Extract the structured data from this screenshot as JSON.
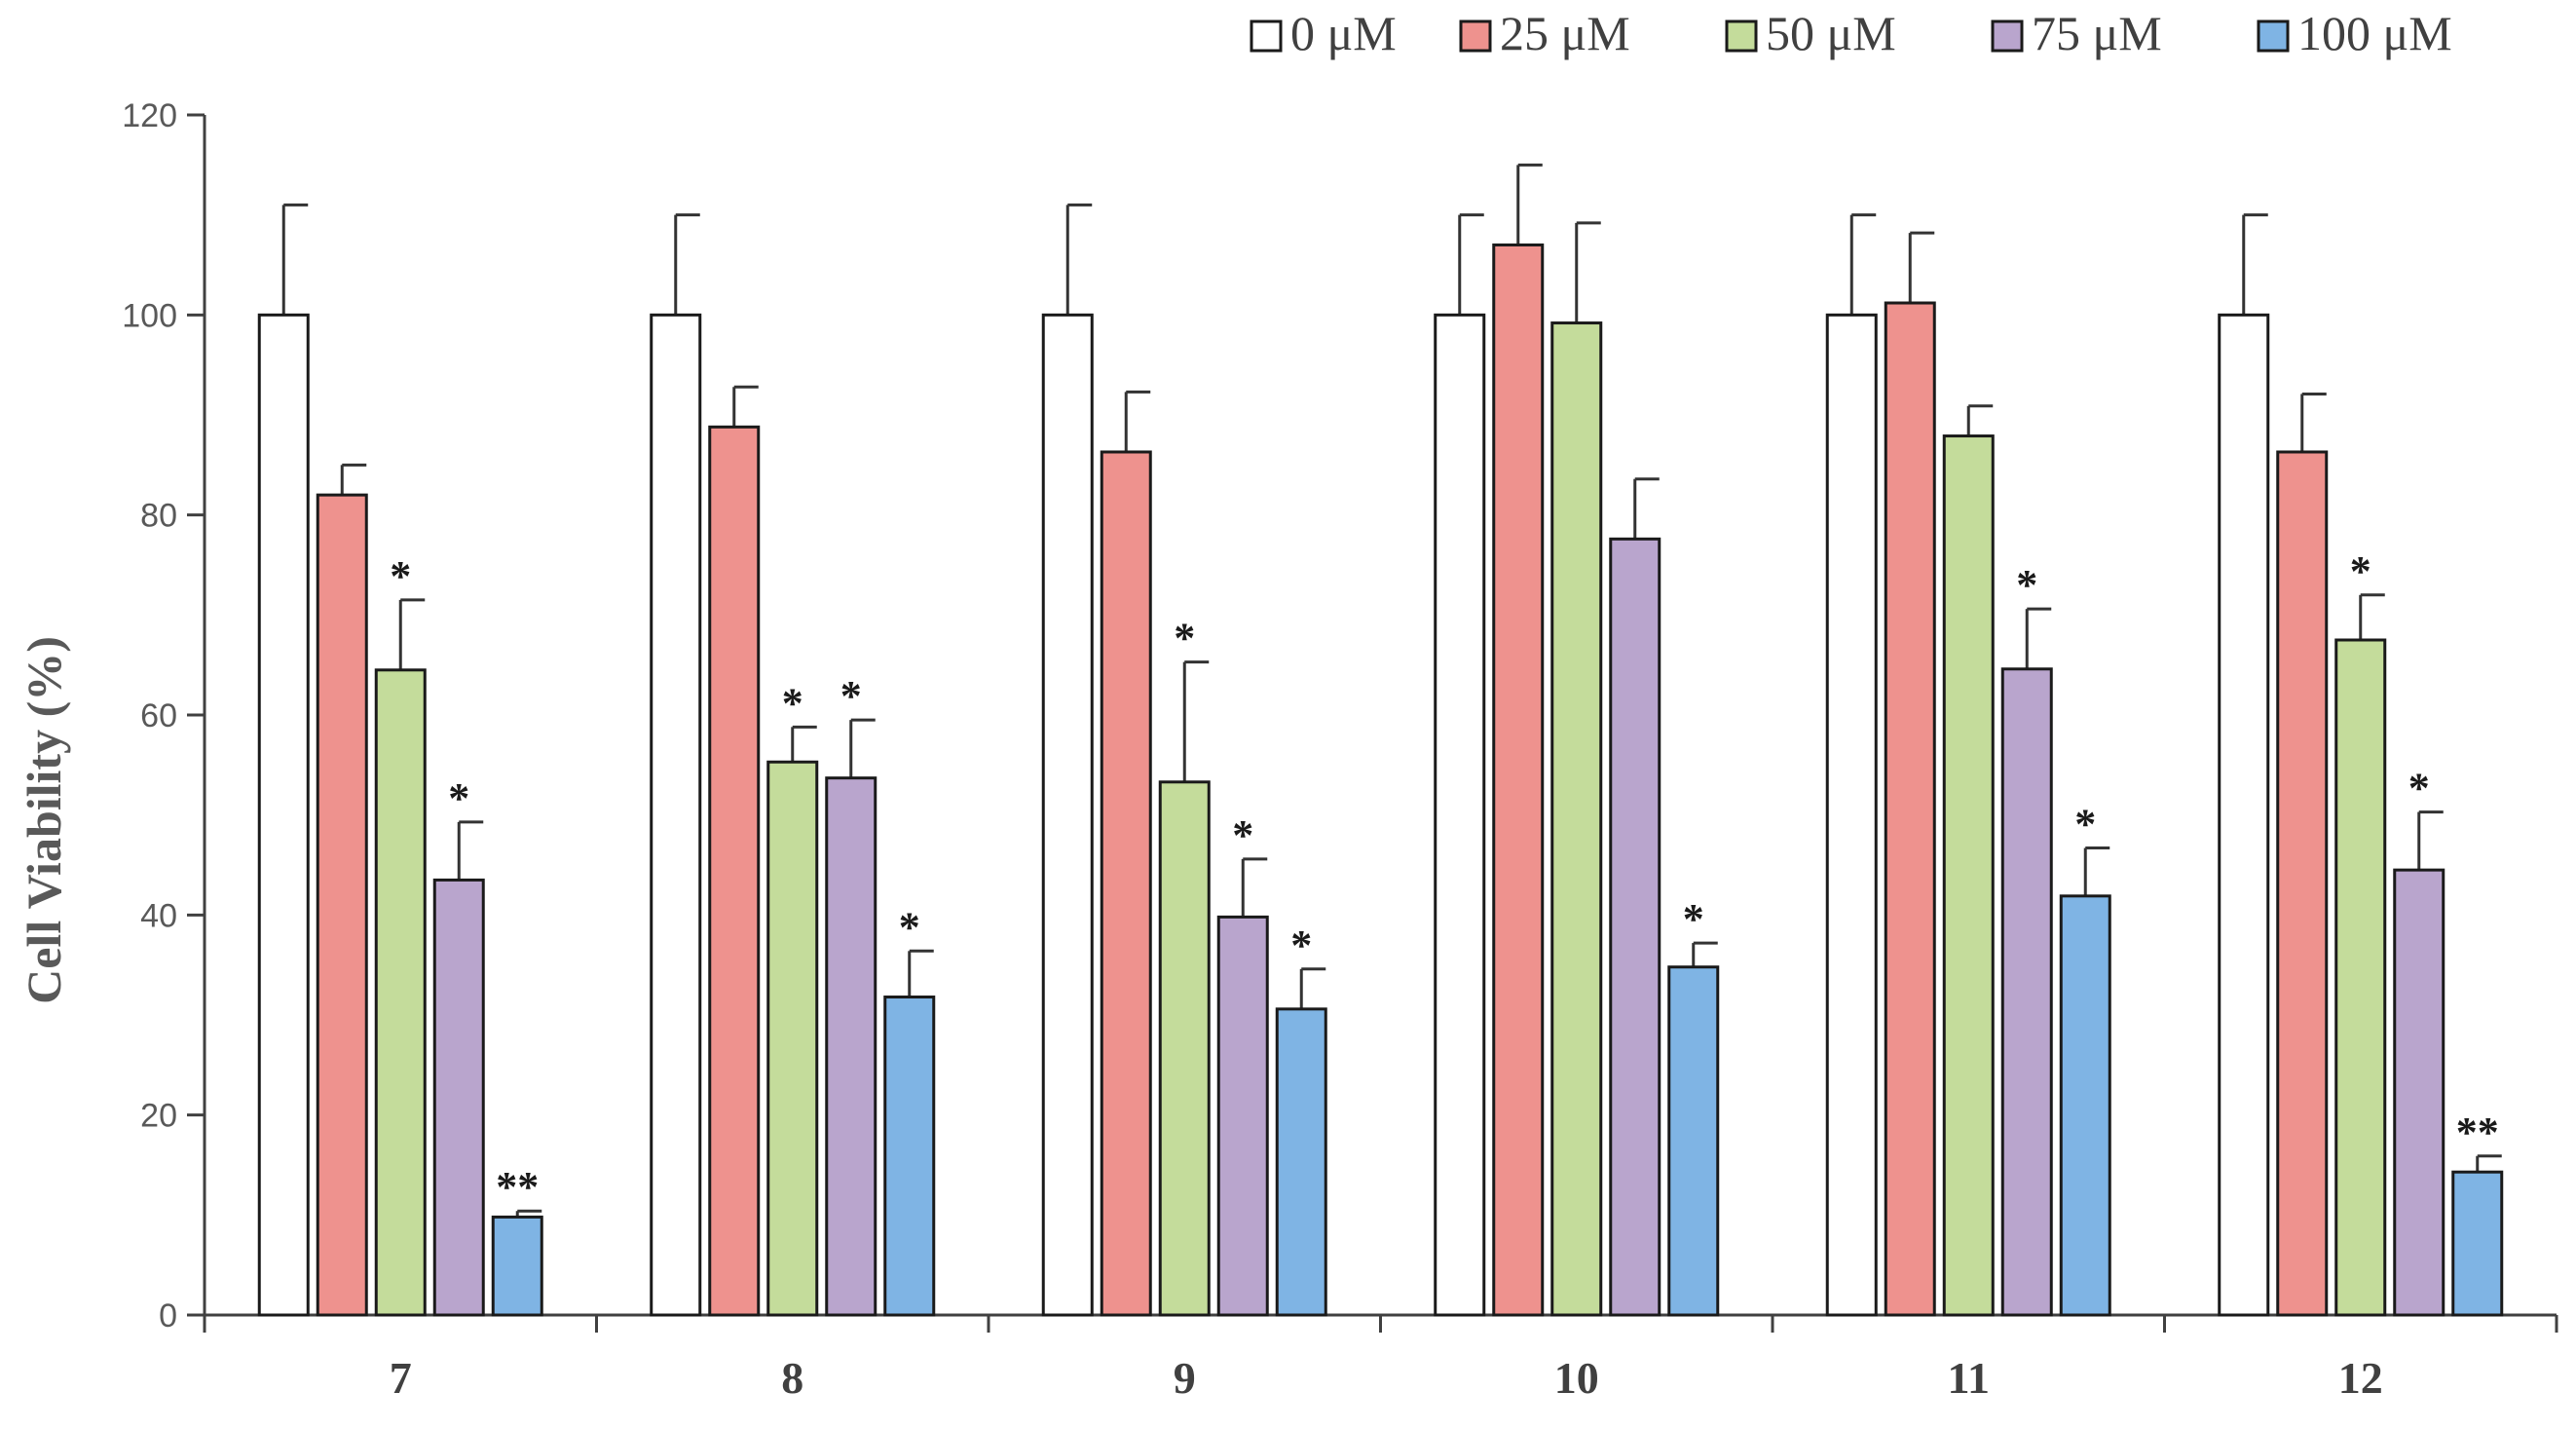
{
  "chart_data": {
    "type": "bar",
    "title": "",
    "xlabel": "",
    "ylabel": "Cell Viability (%)",
    "ylim": [
      0,
      120
    ],
    "yticks": [
      0,
      20,
      40,
      60,
      80,
      100,
      120
    ],
    "categories": [
      "7",
      "8",
      "9",
      "10",
      "11",
      "12"
    ],
    "legend_position": "top-right",
    "series": [
      {
        "name": "0 μM",
        "color": "#ffffff",
        "values": [
          100,
          100,
          100,
          100,
          100,
          100
        ],
        "errors": [
          11,
          10,
          11,
          10,
          10,
          10
        ],
        "significance": [
          "",
          "",
          "",
          "",
          "",
          ""
        ]
      },
      {
        "name": "25 μM",
        "color": "#ee928e",
        "values": [
          82,
          88.8,
          86.3,
          107,
          101.2,
          86.3
        ],
        "errors": [
          3,
          4,
          6,
          8,
          7,
          5.8
        ],
        "significance": [
          "",
          "",
          "",
          "",
          "",
          ""
        ]
      },
      {
        "name": "50 μM",
        "color": "#c4dc9b",
        "values": [
          64.5,
          55.3,
          53.3,
          99.2,
          87.9,
          67.5
        ],
        "errors": [
          7,
          3.5,
          12,
          10,
          3,
          4.5
        ],
        "significance": [
          "*",
          "*",
          "*",
          "",
          "",
          "*"
        ]
      },
      {
        "name": "75 μM",
        "color": "#b9a5cd",
        "values": [
          43.5,
          53.7,
          39.8,
          77.6,
          64.6,
          44.5
        ],
        "errors": [
          5.8,
          5.8,
          5.8,
          6,
          6,
          5.8
        ],
        "significance": [
          "*",
          "*",
          "*",
          "",
          "*",
          "*"
        ]
      },
      {
        "name": "100 μM",
        "color": "#7fb4e4",
        "values": [
          9.8,
          31.8,
          30.6,
          34.8,
          41.9,
          14.3
        ],
        "errors": [
          0.6,
          4.6,
          4,
          2.4,
          4.8,
          1.6
        ],
        "significance": [
          "**",
          "*",
          "*",
          "*",
          "*",
          "**"
        ]
      }
    ]
  }
}
